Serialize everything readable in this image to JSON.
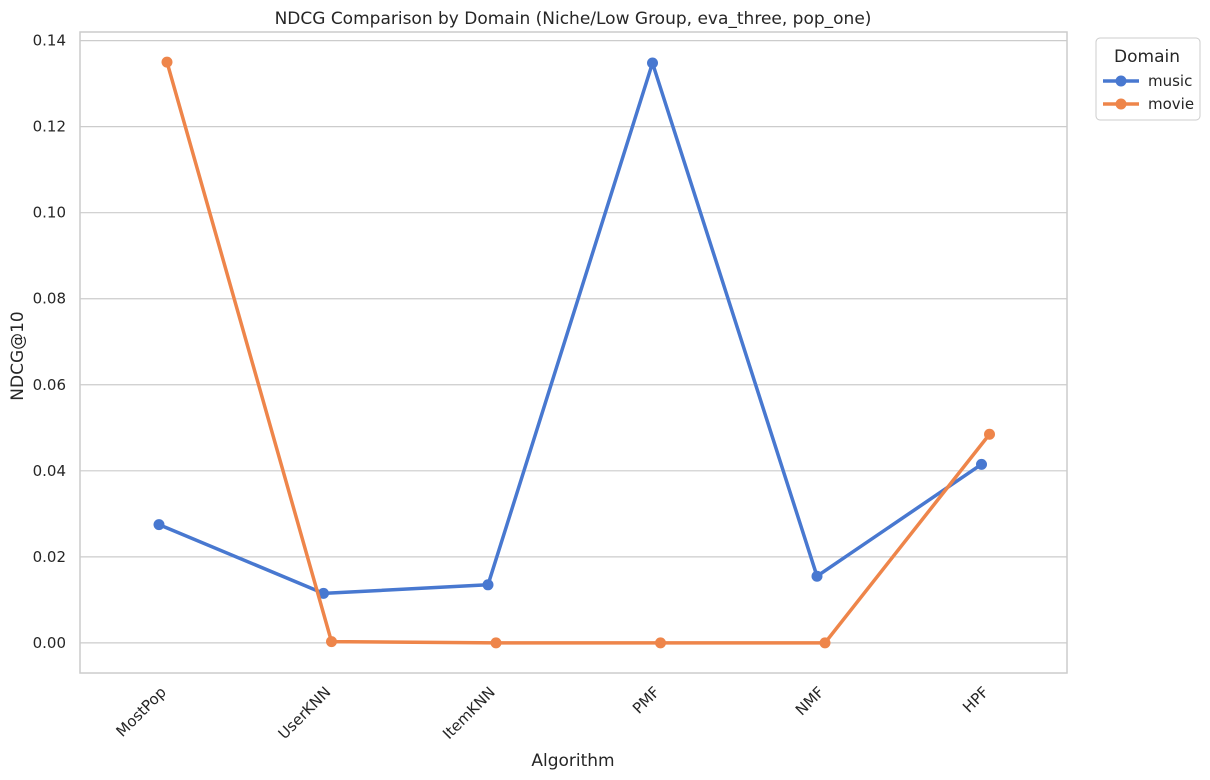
{
  "chart_data": {
    "type": "line",
    "title": "NDCG Comparison by Domain (Niche/Low Group, eva_three, pop_one)",
    "xlabel": "Algorithm",
    "ylabel": "NDCG@10",
    "categories": [
      "MostPop",
      "UserKNN",
      "ItemKNN",
      "PMF",
      "NMF",
      "HPF"
    ],
    "yticks": [
      "0.00",
      "0.02",
      "0.04",
      "0.06",
      "0.08",
      "0.10",
      "0.12",
      "0.14"
    ],
    "ylim": [
      -0.007,
      0.142
    ],
    "grid": true,
    "legend": {
      "title": "Domain",
      "placement": "outside-top-right"
    },
    "series": [
      {
        "name": "music",
        "color": "#4878d0",
        "values": [
          0.0275,
          0.0115,
          0.0135,
          0.1348,
          0.0155,
          0.0415
        ]
      },
      {
        "name": "movie",
        "color": "#ee854a",
        "values": [
          0.135,
          0.0003,
          0.0,
          0.0,
          0.0,
          0.0485
        ]
      }
    ]
  }
}
